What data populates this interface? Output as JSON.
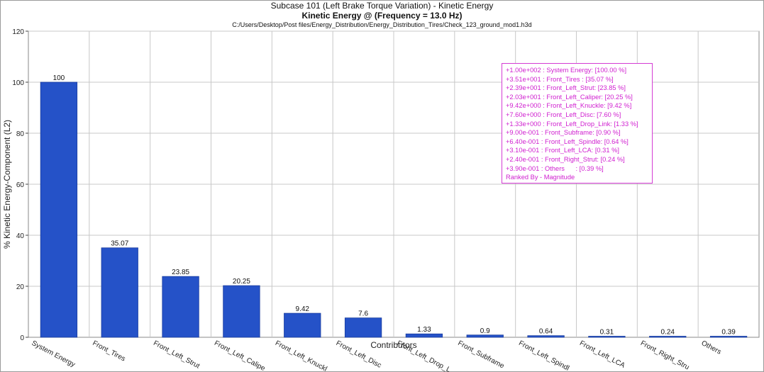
{
  "chart_data": {
    "type": "bar",
    "title": "Subcase 101 (Left Brake Torque Variation) - Kinetic Energy",
    "subtitle": "Kinetic Energy @  (Frequency = 13.0 Hz)",
    "source": "C:/Users/Desktop/Post files/Energy_Distribution/Energy_Distribution_Tires/Check_123_ground_mod1.h3d",
    "xlabel": "Contributors",
    "ylabel": "% Kinetic Energy-Component (L2)",
    "ylim": [
      0,
      120
    ],
    "yticks": [
      0,
      20,
      40,
      60,
      80,
      100,
      120
    ],
    "grid": true,
    "categories": [
      "System Energy",
      "Front_Tires",
      "Front_Left_Strut",
      "Front_Left_Caliper",
      "Front_Left_Knuckle",
      "Front_Left_Disc",
      "Front_Left_Drop_Link",
      "Front_Subframe",
      "Front_Left_Spindle",
      "Front_Left_LCA",
      "Front_Right_Strut",
      "Others"
    ],
    "tick_labels": [
      "System Energy",
      "Front_Tires",
      "Front_Left_Strut",
      "Front_Left_Calipe",
      "Front_Left_Knuckl",
      "Front_Left_Disc",
      "Front_Left_Drop_L",
      "Front_Subframe",
      "Front_Left_Spindl",
      "Front_Left_LCA",
      "Front_Right_Stru",
      "Others"
    ],
    "values": [
      100,
      35.07,
      23.85,
      20.25,
      9.42,
      7.6,
      1.33,
      0.9,
      0.64,
      0.31,
      0.24,
      0.39
    ],
    "value_labels": [
      "100",
      "35.07",
      "23.85",
      "20.25",
      "9.42",
      "7.6",
      "1.33",
      "0.9",
      "0.64",
      "0.31",
      "0.24",
      "0.39"
    ],
    "legend": {
      "placement": "top-right",
      "entries": [
        "+1.00e+002 : System Energy: [100.00 %]",
        "+3.51e+001 : Front_Tires : [35.07 %]",
        "+2.39e+001 : Front_Left_Strut: [23.85 %]",
        "+2.03e+001 : Front_Left_Caliper: [20.25 %]",
        "+9.42e+000 : Front_Left_Knuckle: [9.42 %]",
        "+7.60e+000 : Front_Left_Disc: [7.60 %]",
        "+1.33e+000 : Front_Left_Drop_Link: [1.33 %]",
        "+9.00e-001 : Front_Subframe: [0.90 %]",
        "+6.40e-001 : Front_Left_Spindle: [0.64 %]",
        "+3.10e-001 : Front_Left_LCA: [0.31 %]",
        "+2.40e-001 : Front_Right_Strut: [0.24 %]",
        "+3.90e-001 : Others      : [0.39 %]"
      ],
      "footer": "Ranked By - Magnitude"
    },
    "colors": {
      "bar": "#2552c8",
      "bar_edge": "#1a3d9e",
      "grid": "#c8c8c8",
      "legend": "#d020d0"
    }
  }
}
